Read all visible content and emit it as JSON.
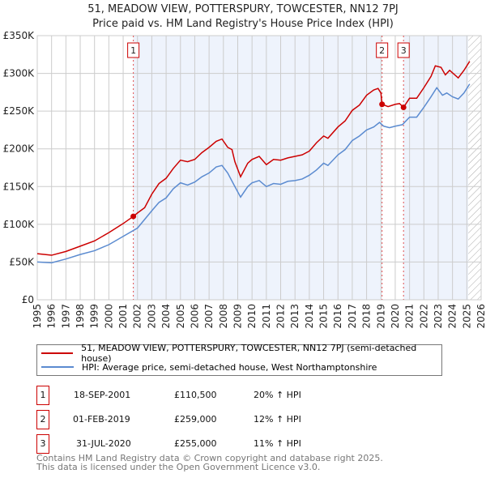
{
  "chart_data": {
    "type": "line",
    "title": "51, MEADOW VIEW, POTTERSPURY, TOWCESTER, NN12 7PJ",
    "subtitle": "Price paid vs. HM Land Registry's House Price Index (HPI)",
    "xlim": [
      1995,
      2026
    ],
    "ylim": [
      0,
      350000
    ],
    "x_ticks": [
      "1995",
      "1996",
      "1997",
      "1998",
      "1999",
      "2000",
      "2001",
      "2002",
      "2003",
      "2004",
      "2005",
      "2006",
      "2007",
      "2008",
      "2009",
      "2010",
      "2011",
      "2012",
      "2013",
      "2014",
      "2015",
      "2016",
      "2017",
      "2018",
      "2019",
      "2020",
      "2021",
      "2022",
      "2023",
      "2024",
      "2025",
      "2026"
    ],
    "y_ticks": [
      {
        "v": 0,
        "label": "£0"
      },
      {
        "v": 50000,
        "label": "£50K"
      },
      {
        "v": 100000,
        "label": "£100K"
      },
      {
        "v": 150000,
        "label": "£150K"
      },
      {
        "v": 200000,
        "label": "£200K"
      },
      {
        "v": 250000,
        "label": "£250K"
      },
      {
        "v": 300000,
        "label": "£300K"
      },
      {
        "v": 350000,
        "label": "£350K"
      }
    ],
    "grid": true,
    "forecast_from": 2025.1,
    "series": [
      {
        "name": "51, MEADOW VIEW, POTTERSPURY, TOWCESTER, NN12 7PJ (semi-detached house)",
        "color": "#cc0000",
        "x": [
          1995,
          1996,
          1997,
          1998,
          1999,
          2000,
          2001,
          2001.71,
          2002,
          2002.5,
          2003,
          2003.5,
          2004,
          2004.5,
          2005,
          2005.5,
          2006,
          2006.5,
          2007,
          2007.5,
          2007.9,
          2008.3,
          2008.6,
          2008.8,
          2009.2,
          2009.7,
          2010,
          2010.5,
          2011,
          2011.5,
          2012,
          2012.5,
          2013,
          2013.5,
          2014,
          2014.5,
          2015,
          2015.3,
          2016,
          2016.5,
          2017,
          2017.5,
          2018,
          2018.5,
          2018.8,
          2019.0,
          2019.08,
          2019.5,
          2020,
          2020.3,
          2020.58,
          2021,
          2021.5,
          2022,
          2022.5,
          2022.8,
          2023.2,
          2023.5,
          2023.8,
          2024.4,
          2024.8,
          2025.2
        ],
        "values": [
          61000,
          59000,
          64000,
          71000,
          78000,
          89000,
          101000,
          110500,
          115000,
          122000,
          140000,
          154000,
          161000,
          174000,
          185000,
          183000,
          186000,
          195000,
          202000,
          210000,
          213000,
          202000,
          199000,
          183000,
          163000,
          181000,
          186000,
          190000,
          179000,
          186000,
          185000,
          188000,
          190000,
          192000,
          197000,
          208000,
          217000,
          214000,
          229000,
          237000,
          251000,
          258000,
          271000,
          278000,
          280000,
          274000,
          259000,
          256000,
          259000,
          260000,
          255000,
          267000,
          267000,
          281000,
          296000,
          310000,
          308000,
          298000,
          304000,
          294000,
          304000,
          316000
        ]
      },
      {
        "name": "HPI: Average price, semi-detached house, West Northamptonshire",
        "color": "#5b8bd0",
        "x": [
          1995,
          1996,
          1997,
          1998,
          1999,
          2000,
          2001,
          2002,
          2003,
          2003.5,
          2004,
          2004.5,
          2005,
          2005.5,
          2006,
          2006.5,
          2007,
          2007.5,
          2007.9,
          2008.3,
          2008.8,
          2009.2,
          2009.7,
          2010,
          2010.5,
          2011,
          2011.5,
          2012,
          2012.5,
          2013,
          2013.5,
          2014,
          2014.5,
          2015,
          2015.3,
          2016,
          2016.5,
          2017,
          2017.5,
          2018,
          2018.5,
          2018.9,
          2019.2,
          2019.6,
          2020,
          2020.5,
          2021,
          2021.5,
          2022,
          2022.5,
          2022.9,
          2023.3,
          2023.6,
          2024.0,
          2024.4,
          2024.8,
          2025.2
        ],
        "values": [
          50000,
          49000,
          54000,
          60000,
          65000,
          73000,
          84000,
          95000,
          118000,
          129000,
          135000,
          147000,
          155000,
          152000,
          156000,
          163000,
          168000,
          176000,
          178000,
          168000,
          150000,
          136000,
          150000,
          155000,
          158000,
          150000,
          154000,
          153000,
          157000,
          158000,
          160000,
          165000,
          172000,
          181000,
          178000,
          192000,
          199000,
          211000,
          217000,
          225000,
          229000,
          235000,
          230000,
          228000,
          230000,
          232000,
          242000,
          242000,
          255000,
          269000,
          281000,
          271000,
          274000,
          269000,
          266000,
          274000,
          286000
        ]
      }
    ],
    "sales": [
      {
        "num": "1",
        "x": 2001.71,
        "value": 110500,
        "date": "18-SEP-2001",
        "price": "£110,500",
        "hpi": "20% ↑ HPI"
      },
      {
        "num": "2",
        "x": 2019.08,
        "value": 259000,
        "date": "01-FEB-2019",
        "price": "£259,000",
        "hpi": "12% ↑ HPI"
      },
      {
        "num": "3",
        "x": 2020.58,
        "value": 255000,
        "date": "31-JUL-2020",
        "price": "£255,000",
        "hpi": "11% ↑ HPI"
      }
    ]
  },
  "legend": {
    "property": "51, MEADOW VIEW, POTTERSPURY, TOWCESTER, NN12 7PJ (semi-detached house)",
    "hpi": "HPI: Average price, semi-detached house, West Northamptonshire"
  },
  "footer": {
    "line1": "Contains HM Land Registry data © Crown copyright and database right 2025.",
    "line2": "This data is licensed under the Open Government Licence v3.0."
  }
}
